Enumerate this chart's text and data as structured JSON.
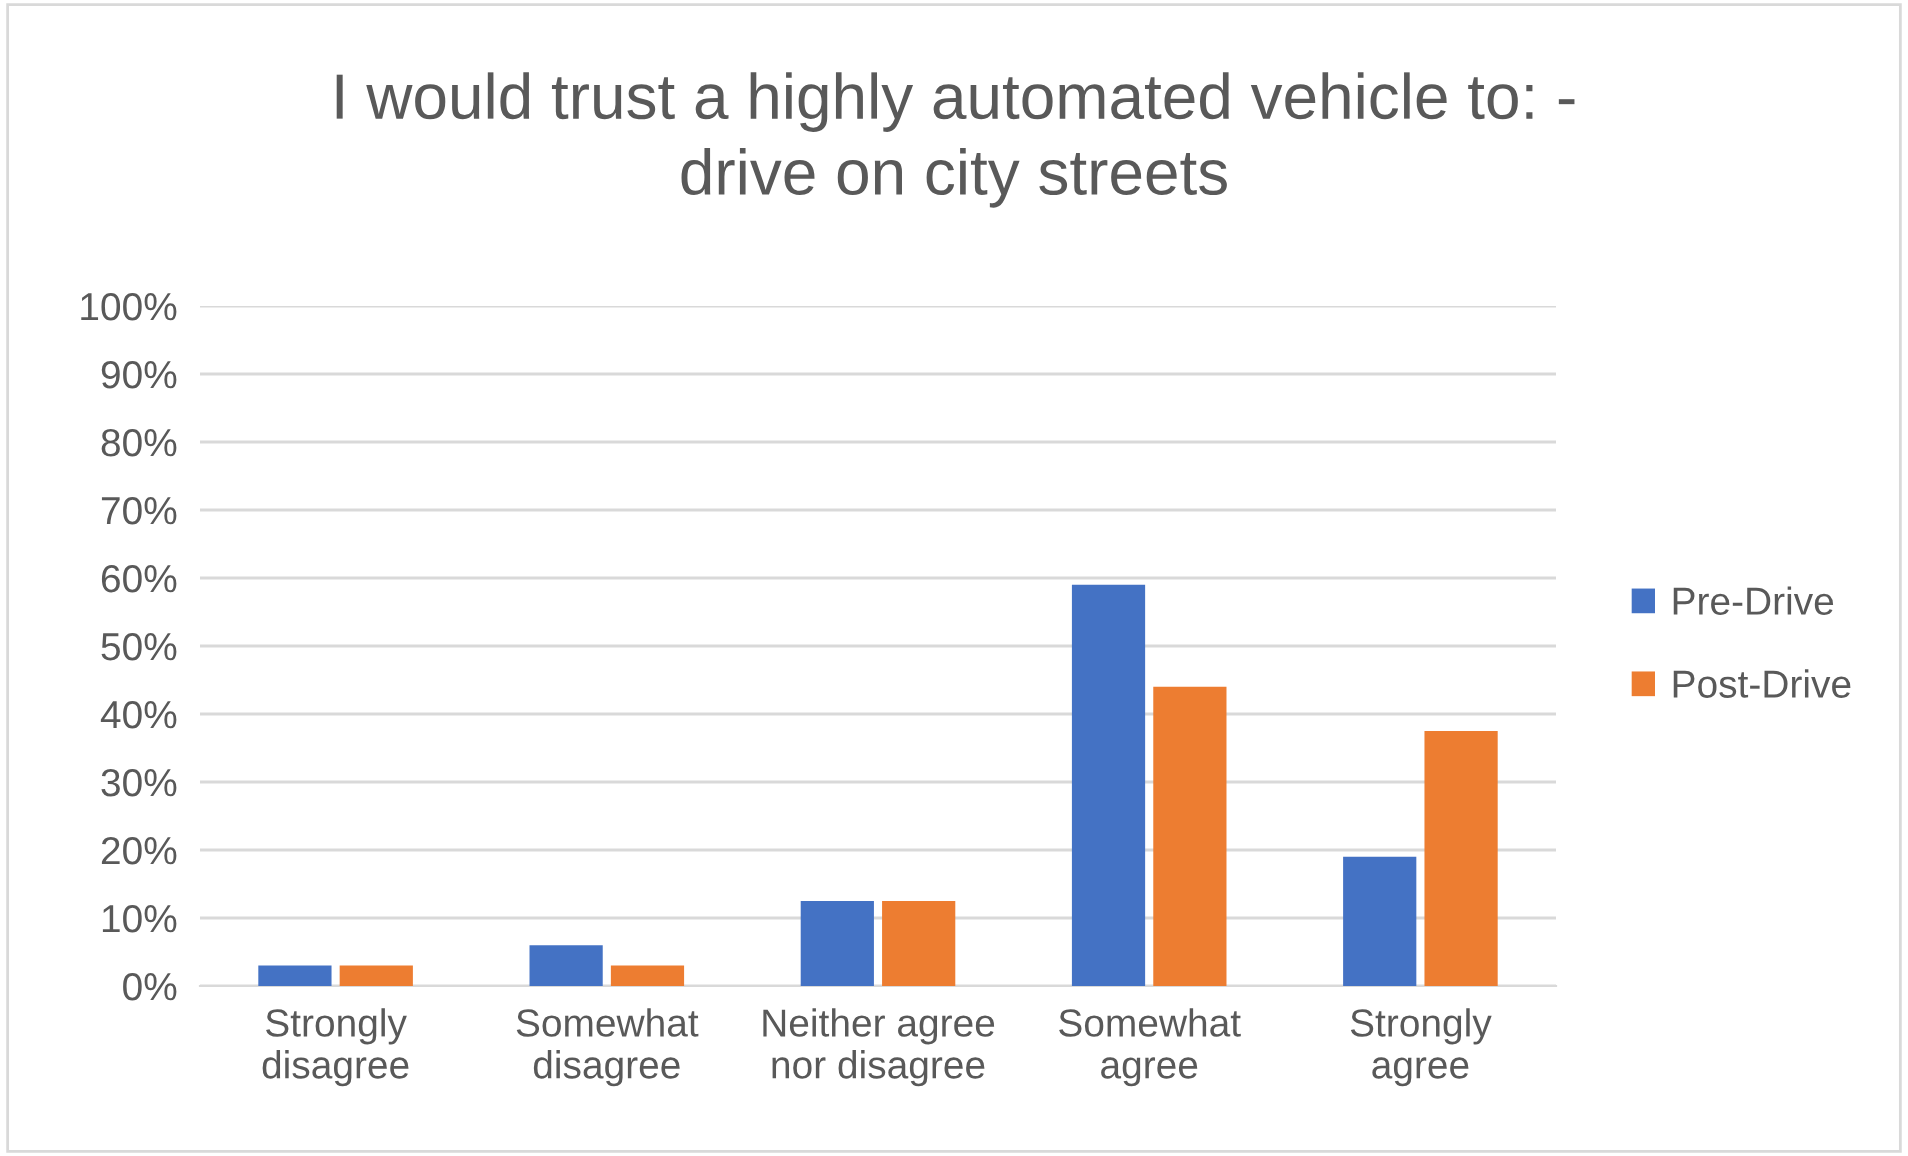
{
  "chart_data": {
    "type": "bar",
    "title": "I would trust a highly automated vehicle to: -\ndrive on city streets",
    "categories": [
      "Strongly\ndisagree",
      "Somewhat\ndisagree",
      "Neither agree\nnor disagree",
      "Somewhat\nagree",
      "Strongly\nagree"
    ],
    "series": [
      {
        "name": "Pre-Drive",
        "color": "#4472c4",
        "values": [
          3,
          6,
          12.5,
          59,
          19
        ]
      },
      {
        "name": "Post-Drive",
        "color": "#ed7d31",
        "values": [
          3,
          3,
          12.5,
          44,
          37.5
        ]
      }
    ],
    "ylim": [
      0,
      100
    ],
    "yticks": [
      {
        "value": 0,
        "label": "0%"
      },
      {
        "value": 10,
        "label": "10%"
      },
      {
        "value": 20,
        "label": "20%"
      },
      {
        "value": 30,
        "label": "30%"
      },
      {
        "value": 40,
        "label": "40%"
      },
      {
        "value": 50,
        "label": "50%"
      },
      {
        "value": 60,
        "label": "60%"
      },
      {
        "value": 70,
        "label": "70%"
      },
      {
        "value": 80,
        "label": "80%"
      },
      {
        "value": 90,
        "label": "90%"
      },
      {
        "value": 100,
        "label": "100%"
      }
    ],
    "grid": "y",
    "legend": "right"
  }
}
